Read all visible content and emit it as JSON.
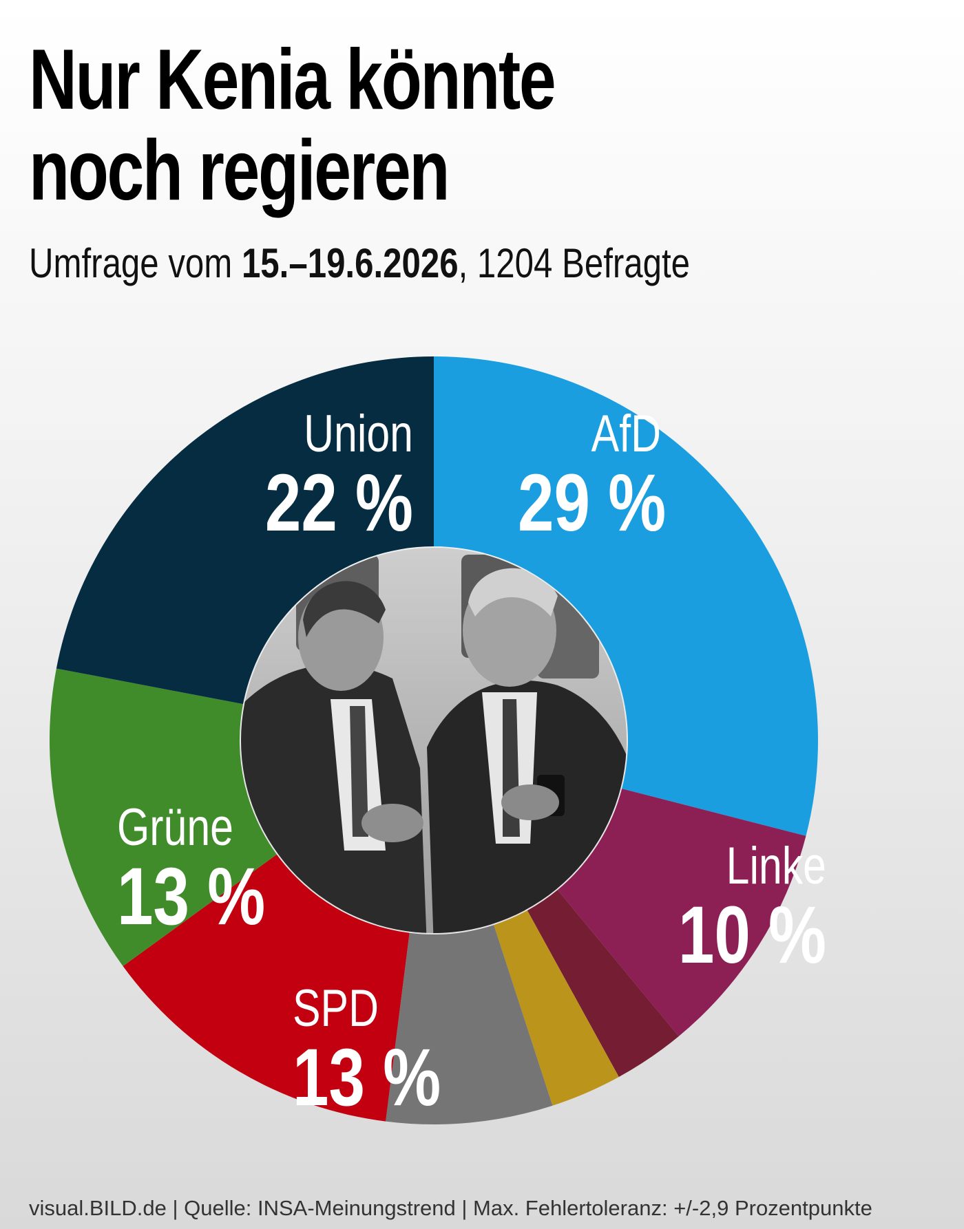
{
  "title_line1": "Nur Kenia könnte",
  "title_line2": "noch regieren",
  "subtitle": {
    "prefix": "Umfrage vom ",
    "date": "15.–19.6.2026",
    "suffix": ", 1204 Befragte"
  },
  "chart_data": {
    "type": "pie",
    "style": "donut",
    "start": "12 o'clock, clockwise",
    "slices": [
      {
        "name": "AfD",
        "value": 29,
        "label": "29 %",
        "color": "#1a9ee0",
        "labeled": true
      },
      {
        "name": "Linke",
        "value": 10,
        "label": "10 %",
        "color": "#8c2055",
        "labeled": true
      },
      {
        "name": "",
        "value": 3,
        "label": "",
        "color": "#741d33",
        "labeled": false
      },
      {
        "name": "",
        "value": 3,
        "label": "",
        "color": "#bb951b",
        "labeled": false
      },
      {
        "name": "",
        "value": 7,
        "label": "",
        "color": "#757575",
        "labeled": false
      },
      {
        "name": "SPD",
        "value": 13,
        "label": "13 %",
        "color": "#c20010",
        "labeled": true
      },
      {
        "name": "Grüne",
        "value": 13,
        "label": "13 %",
        "color": "#418c2a",
        "labeled": true
      },
      {
        "name": "Union",
        "value": 22,
        "label": "22 %",
        "color": "#062c41",
        "labeled": true
      }
    ],
    "center_image": "photo-two-politicians-talking"
  },
  "footer": "visual.BILD.de | Quelle: INSA-Meinungstrend | Max. Fehlertoleranz: +/-2,9 Prozentpunkte"
}
